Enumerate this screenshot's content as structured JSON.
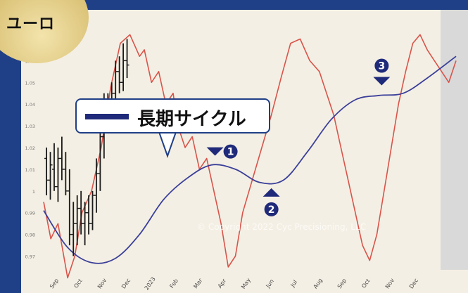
{
  "title": "ユーロ",
  "legend": {
    "label": "長期サイクル",
    "color": "#1f2a7a"
  },
  "watermark": "© Copyright 2022 Cyc Precisioning, LLC",
  "markers": [
    {
      "label": "❶",
      "month_index": 7.15,
      "direction": "down"
    },
    {
      "label": "❷",
      "month_index": 9.5,
      "direction": "up"
    },
    {
      "label": "❸",
      "month_index": 14.1,
      "direction": "down"
    }
  ],
  "chart_data": {
    "type": "line",
    "x_labels": [
      "Sep",
      "Oct",
      "Nov",
      "Dec",
      "2023",
      "Feb",
      "Mar",
      "Apr",
      "May",
      "Jun",
      "Jul",
      "Aug",
      "Sep",
      "Oct",
      "Nov",
      "Dec"
    ],
    "y_ticks": [
      "1.07",
      "1.06",
      "1.05",
      "1.04",
      "1.03",
      "1.02",
      "1.01",
      "1",
      "0.99",
      "0.98",
      "0.97"
    ],
    "ylim": [
      0.965,
      1.075
    ],
    "xlim": [
      0,
      17.7
    ],
    "colors": {
      "price": "#1a1a1a",
      "cycle_short": "#d9544a",
      "cycle_long": "#3a3f9a"
    },
    "series": [
      {
        "name": "長期サイクル",
        "x": [
          0,
          1,
          2,
          3,
          4,
          5,
          6,
          7,
          8,
          9,
          10,
          11,
          12,
          13,
          14,
          15,
          16,
          17.2
        ],
        "y": [
          0.991,
          0.974,
          0.967,
          0.969,
          0.98,
          0.996,
          1.006,
          1.012,
          1.01,
          1.004,
          1.005,
          1.018,
          1.033,
          1.042,
          1.044,
          1.045,
          1.052,
          1.062
        ]
      }
    ],
    "short_cycle": {
      "x": [
        0,
        0.3,
        0.6,
        1,
        1.3,
        1.6,
        2,
        2.4,
        2.8,
        3.2,
        3.6,
        4,
        4.2,
        4.5,
        4.8,
        5.1,
        5.4,
        5.6,
        5.9,
        6.2,
        6.5,
        6.8,
        7.1,
        7.4,
        7.7,
        8,
        8.3,
        8.7,
        9.1,
        9.5,
        9.9,
        10.3,
        10.7,
        11.1,
        11.5,
        11.8,
        12.1,
        12.4,
        12.7,
        13,
        13.3,
        13.6,
        13.9,
        14.2,
        14.5,
        14.8,
        15.1,
        15.4,
        15.7,
        16,
        16.3,
        16.6,
        16.9,
        17.2
      ],
      "y": [
        0.995,
        0.978,
        0.985,
        0.96,
        0.97,
        0.99,
        1.0,
        1.02,
        1.048,
        1.068,
        1.072,
        1.062,
        1.065,
        1.05,
        1.055,
        1.04,
        1.045,
        1.03,
        1.02,
        1.025,
        1.01,
        1.015,
        1.0,
        0.985,
        0.965,
        0.97,
        0.99,
        1.005,
        1.02,
        1.035,
        1.052,
        1.068,
        1.07,
        1.06,
        1.055,
        1.045,
        1.035,
        1.02,
        1.005,
        0.99,
        0.975,
        0.968,
        0.98,
        1.0,
        1.02,
        1.04,
        1.055,
        1.068,
        1.072,
        1.065,
        1.06,
        1.055,
        1.05,
        1.06
      ]
    },
    "ohlc": [
      {
        "x": 0.12,
        "o": 1.015,
        "h": 1.02,
        "l": 0.998,
        "c": 1.005
      },
      {
        "x": 0.28,
        "o": 1.005,
        "h": 1.018,
        "l": 0.996,
        "c": 1.012
      },
      {
        "x": 0.44,
        "o": 1.01,
        "h": 1.022,
        "l": 1.0,
        "c": 1.002
      },
      {
        "x": 0.6,
        "o": 1.002,
        "h": 1.02,
        "l": 0.995,
        "c": 1.015
      },
      {
        "x": 0.76,
        "o": 1.015,
        "h": 1.025,
        "l": 1.005,
        "c": 1.01
      },
      {
        "x": 0.92,
        "o": 1.01,
        "h": 1.018,
        "l": 0.998,
        "c": 1.0
      },
      {
        "x": 1.08,
        "o": 1.0,
        "h": 1.01,
        "l": 0.975,
        "c": 0.98
      },
      {
        "x": 1.24,
        "o": 0.98,
        "h": 0.995,
        "l": 0.97,
        "c": 0.985
      },
      {
        "x": 1.4,
        "o": 0.985,
        "h": 0.998,
        "l": 0.975,
        "c": 0.992
      },
      {
        "x": 1.56,
        "o": 0.992,
        "h": 1.0,
        "l": 0.98,
        "c": 0.985
      },
      {
        "x": 1.72,
        "o": 0.985,
        "h": 0.995,
        "l": 0.975,
        "c": 0.99
      },
      {
        "x": 1.88,
        "o": 0.99,
        "h": 0.998,
        "l": 0.98,
        "c": 0.985
      },
      {
        "x": 2.04,
        "o": 0.985,
        "h": 1.0,
        "l": 0.982,
        "c": 0.998
      },
      {
        "x": 2.2,
        "o": 0.998,
        "h": 1.015,
        "l": 0.99,
        "c": 1.008
      },
      {
        "x": 2.36,
        "o": 1.008,
        "h": 1.03,
        "l": 1.0,
        "c": 1.025
      },
      {
        "x": 2.52,
        "o": 1.025,
        "h": 1.045,
        "l": 1.015,
        "c": 1.04
      },
      {
        "x": 2.68,
        "o": 1.04,
        "h": 1.045,
        "l": 1.028,
        "c": 1.032
      },
      {
        "x": 2.84,
        "o": 1.032,
        "h": 1.05,
        "l": 1.028,
        "c": 1.045
      },
      {
        "x": 3.0,
        "o": 1.045,
        "h": 1.06,
        "l": 1.04,
        "c": 1.055
      },
      {
        "x": 3.16,
        "o": 1.055,
        "h": 1.062,
        "l": 1.045,
        "c": 1.05
      },
      {
        "x": 3.32,
        "o": 1.05,
        "h": 1.068,
        "l": 1.046,
        "c": 1.06
      },
      {
        "x": 3.48,
        "o": 1.06,
        "h": 1.07,
        "l": 1.052,
        "c": 1.058
      }
    ]
  }
}
